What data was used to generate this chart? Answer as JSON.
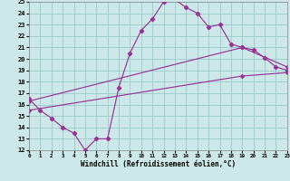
{
  "xlabel": "Windchill (Refroidissement éolien,°C)",
  "background_color": "#cce8e8",
  "grid_color": "#99cccc",
  "line_color": "#993399",
  "xlim": [
    0,
    23
  ],
  "ylim": [
    12,
    25
  ],
  "xticks": [
    0,
    1,
    2,
    3,
    4,
    5,
    6,
    7,
    8,
    9,
    10,
    11,
    12,
    13,
    14,
    15,
    16,
    17,
    18,
    19,
    20,
    21,
    22,
    23
  ],
  "yticks": [
    12,
    13,
    14,
    15,
    16,
    17,
    18,
    19,
    20,
    21,
    22,
    23,
    24,
    25
  ],
  "line1_x": [
    0,
    1,
    2,
    3,
    4,
    5,
    6,
    7,
    8,
    9,
    10,
    11,
    12,
    13,
    14,
    15,
    16,
    17,
    18,
    19,
    20,
    21,
    22,
    23
  ],
  "line1_y": [
    16.5,
    15.5,
    14.8,
    14.0,
    13.5,
    12.0,
    13.0,
    13.0,
    17.5,
    20.5,
    22.5,
    23.5,
    25.0,
    25.2,
    24.5,
    24.0,
    22.8,
    23.0,
    21.3,
    21.0,
    20.8,
    20.1,
    19.3,
    19.0
  ],
  "line2_x": [
    0,
    19,
    23
  ],
  "line2_y": [
    16.3,
    21.0,
    19.3
  ],
  "line3_x": [
    0,
    19,
    23
  ],
  "line3_y": [
    15.5,
    18.5,
    18.8
  ]
}
